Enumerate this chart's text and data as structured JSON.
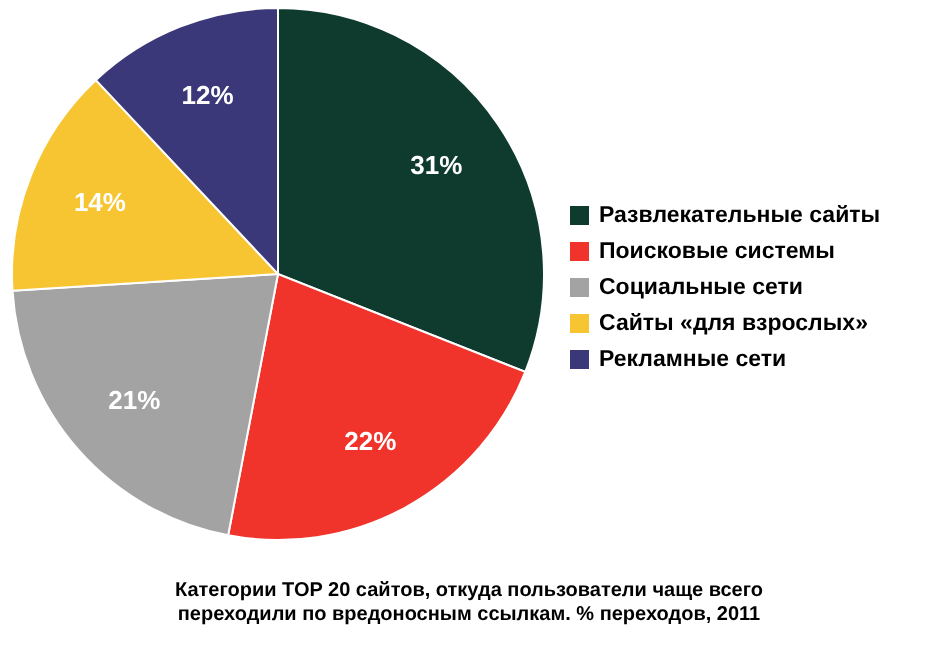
{
  "chart_data": {
    "type": "pie",
    "title": "Категории TOP 20 сайтов, откуда пользователи чаще всего переходили по вредоносным ссылкам. % переходов, 2011",
    "categories": [
      "Развлекательные сайты",
      "Поисковые системы",
      "Социальные сети",
      "Сайты «для взрослых»",
      "Рекламные сети"
    ],
    "values": [
      31,
      22,
      21,
      14,
      12
    ],
    "value_labels": [
      "31%",
      "22%",
      "21%",
      "14%",
      "12%"
    ],
    "colors": [
      "#0f3b2f",
      "#f0342c",
      "#a3a3a3",
      "#f7c531",
      "#3a3878"
    ],
    "legend": "right"
  }
}
